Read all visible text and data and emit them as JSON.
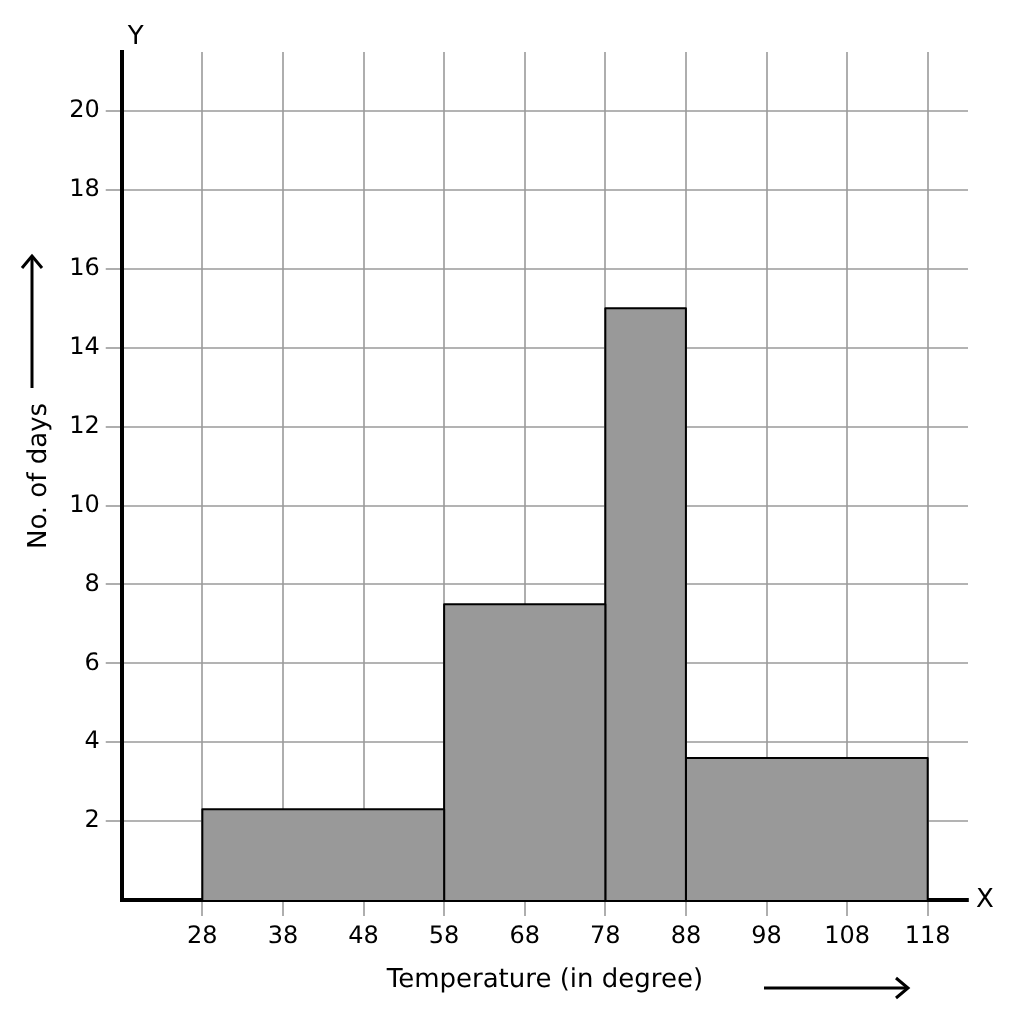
{
  "chart_data": {
    "type": "histogram",
    "xlabel": "Temperature (in degree)",
    "ylabel": "No. of days",
    "bins": [
      28,
      58,
      78,
      88,
      118
    ],
    "values": [
      2.3,
      7.5,
      15,
      3.6
    ],
    "color": "#999999",
    "xlim": [
      18,
      123
    ],
    "xticks": [
      28,
      38,
      48,
      58,
      68,
      78,
      88,
      98,
      108,
      118
    ],
    "ylim": [
      0,
      21.5
    ],
    "yticks": [
      2,
      4,
      6,
      8,
      10,
      12,
      14,
      16,
      18,
      20
    ],
    "grid": true,
    "annotations": [
      "Y",
      "X"
    ]
  }
}
